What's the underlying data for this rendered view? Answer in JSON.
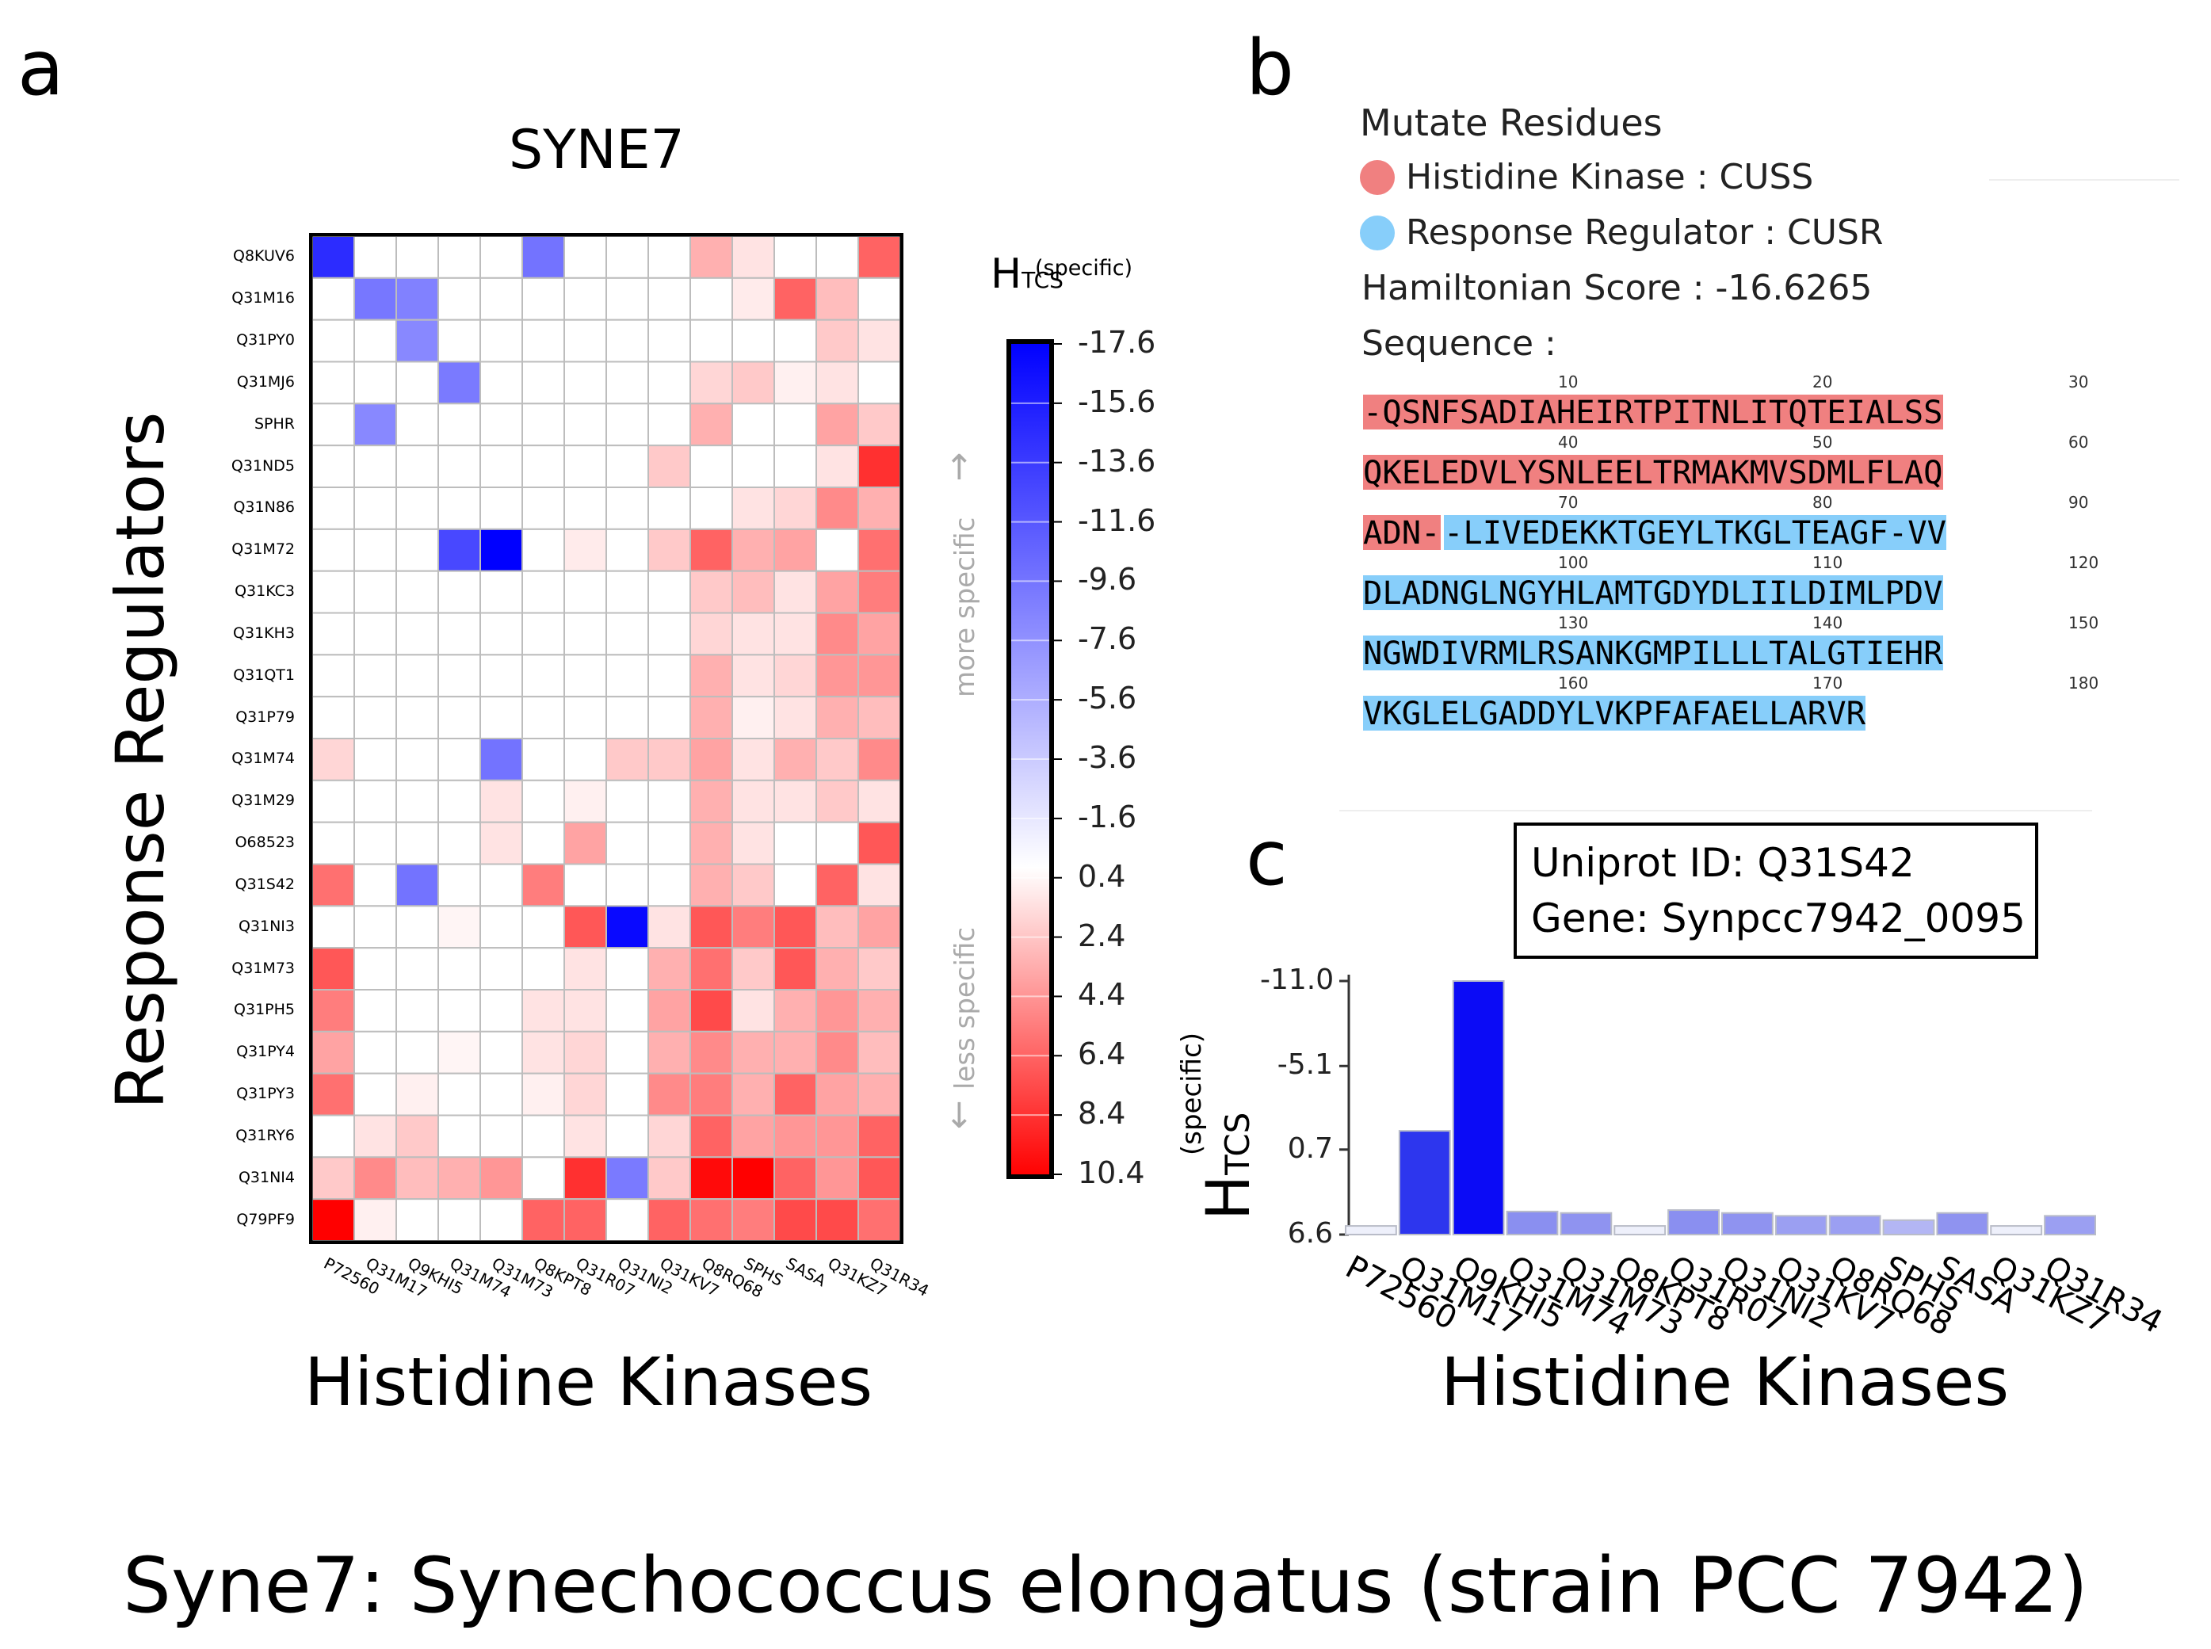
{
  "panels": {
    "a": "a",
    "b": "b",
    "c": "c"
  },
  "caption": "Syne7: Synechococcus elongatus (strain PCC 7942)",
  "chart_data": [
    {
      "type": "heatmap",
      "title": "SYNE7",
      "xlabel": "Histidine Kinases",
      "ylabel": "Response Regulators",
      "columns": [
        "P72560",
        "Q31M17",
        "Q9KHI5",
        "Q31M74",
        "Q31M73",
        "Q8KPT8",
        "Q31R07",
        "Q31NI2",
        "Q31KV7",
        "Q8RQ68",
        "SPHS",
        "SASA",
        "Q31KZ7",
        "Q31R34"
      ],
      "rows": [
        "Q8KUV6",
        "Q31M16",
        "Q31PY0",
        "Q31MJ6",
        "SPHR",
        "Q31ND5",
        "Q31N86",
        "Q31M72",
        "Q31KC3",
        "Q31KH3",
        "Q31QT1",
        "Q31P79",
        "Q31M74",
        "Q31M29",
        "O68523",
        "Q31S42",
        "Q31NI3",
        "Q31M73",
        "Q31PH5",
        "Q31PY4",
        "Q31PY3",
        "Q31RY6",
        "Q31NI4",
        "Q79PF9"
      ],
      "values": [
        [
          -14.5,
          0.4,
          0.4,
          0.4,
          0.4,
          -9.5,
          0.4,
          0.4,
          0.4,
          3.5,
          1.5,
          0.4,
          0.4,
          6.5
        ],
        [
          0.4,
          -9.2,
          -8.5,
          0.4,
          0.4,
          0.4,
          0.4,
          0.4,
          0.4,
          0.4,
          1.2,
          6.5,
          3.0,
          0.4
        ],
        [
          0.4,
          0.4,
          -8.0,
          0.4,
          0.4,
          0.4,
          0.4,
          0.4,
          0.4,
          0.4,
          0.4,
          0.4,
          2.5,
          1.5
        ],
        [
          0.4,
          0.4,
          0.4,
          -9.0,
          0.4,
          0.4,
          0.4,
          0.4,
          0.4,
          2.0,
          2.5,
          1.0,
          1.5,
          0.4
        ],
        [
          0.4,
          -8.0,
          0.4,
          0.4,
          0.4,
          0.4,
          0.4,
          0.4,
          0.4,
          3.5,
          0.4,
          0.4,
          4.0,
          2.5
        ],
        [
          0.4,
          0.4,
          0.4,
          0.4,
          0.4,
          0.4,
          0.4,
          0.4,
          2.5,
          0.4,
          0.4,
          0.4,
          1.5,
          8.5
        ],
        [
          0.4,
          0.4,
          0.4,
          0.4,
          0.4,
          0.4,
          0.4,
          0.4,
          0.4,
          0.4,
          1.5,
          2.0,
          5.0,
          3.5
        ],
        [
          0.4,
          0.4,
          0.4,
          -12.5,
          -17.6,
          0.4,
          1.2,
          0.4,
          2.5,
          6.5,
          3.5,
          4.0,
          0.4,
          6.0
        ],
        [
          0.4,
          0.4,
          0.4,
          0.4,
          0.4,
          0.4,
          0.4,
          0.4,
          0.4,
          2.5,
          3.0,
          1.5,
          4.0,
          5.5
        ],
        [
          0.4,
          0.4,
          0.4,
          0.4,
          0.4,
          0.4,
          0.4,
          0.4,
          0.4,
          2.0,
          1.5,
          1.5,
          5.0,
          4.0
        ],
        [
          0.4,
          0.4,
          0.4,
          0.4,
          0.4,
          0.4,
          0.4,
          0.4,
          0.4,
          3.5,
          1.5,
          2.0,
          4.5,
          4.5
        ],
        [
          0.4,
          0.4,
          0.4,
          0.4,
          0.4,
          0.4,
          0.4,
          0.4,
          0.4,
          3.5,
          1.0,
          1.5,
          3.5,
          3.0
        ],
        [
          2.0,
          0.4,
          0.4,
          0.4,
          -9.5,
          0.4,
          0.4,
          2.5,
          2.5,
          4.0,
          1.5,
          3.5,
          2.5,
          5.0
        ],
        [
          0.4,
          0.4,
          0.4,
          0.4,
          1.5,
          0.4,
          1.0,
          0.4,
          0.4,
          3.5,
          1.5,
          1.5,
          2.5,
          1.5
        ],
        [
          0.4,
          0.4,
          0.4,
          0.4,
          1.5,
          0.4,
          4.0,
          0.4,
          0.4,
          3.5,
          1.5,
          0.4,
          0.4,
          7.0
        ],
        [
          6.0,
          0.4,
          -9.5,
          0.4,
          0.4,
          5.5,
          0.4,
          0.4,
          0.4,
          3.5,
          2.5,
          0.4,
          6.5,
          1.5
        ],
        [
          0.4,
          0.4,
          0.4,
          0.8,
          0.4,
          0.4,
          7.0,
          -17.0,
          1.5,
          7.0,
          5.5,
          7.0,
          3.0,
          4.0
        ],
        [
          7.0,
          0.4,
          0.4,
          0.4,
          0.4,
          0.4,
          1.5,
          0.4,
          3.5,
          6.0,
          2.5,
          7.0,
          3.5,
          2.5
        ],
        [
          5.5,
          0.4,
          0.4,
          0.4,
          0.4,
          1.5,
          1.5,
          0.4,
          4.0,
          7.5,
          1.5,
          3.5,
          4.5,
          3.5
        ],
        [
          4.0,
          0.4,
          0.4,
          0.8,
          0.4,
          1.5,
          2.0,
          0.4,
          3.5,
          5.0,
          3.5,
          3.5,
          5.0,
          3.0
        ],
        [
          6.0,
          0.4,
          1.0,
          0.4,
          0.4,
          1.0,
          2.0,
          0.4,
          5.0,
          5.5,
          3.5,
          6.5,
          4.0,
          3.5
        ],
        [
          0.4,
          1.5,
          2.5,
          0.4,
          0.4,
          0.4,
          1.5,
          0.4,
          2.0,
          6.5,
          4.0,
          4.5,
          4.5,
          6.5
        ],
        [
          2.5,
          5.0,
          3.0,
          3.5,
          4.5,
          0.4,
          8.5,
          -9.0,
          2.5,
          10.0,
          10.4,
          6.5,
          4.5,
          7.0
        ],
        [
          10.4,
          1.0,
          0.4,
          0.4,
          0.4,
          6.5,
          6.5,
          0.4,
          6.5,
          6.0,
          5.5,
          7.5,
          7.5,
          6.0
        ]
      ],
      "colorbar": {
        "label": "H",
        "label_sub": "TCS",
        "label_sup": "(specific)",
        "range": [
          -17.6,
          10.4
        ],
        "ticks": [
          "-17.6",
          "-15.6",
          "-13.6",
          "-11.6",
          "-9.6",
          "-7.6",
          "-5.6",
          "-3.6",
          "-1.6",
          "0.4",
          "2.4",
          "4.4",
          "6.4",
          "8.4",
          "10.4"
        ],
        "note_top": "more specific",
        "note_bottom": "less specific",
        "arrow_up": "↑",
        "arrow_down": "↓"
      },
      "colors": {
        "negative": "#0000ff",
        "neutral": "#ffffff",
        "positive": "#ff0000",
        "grid": "#bdbdbd"
      }
    },
    {
      "type": "bar",
      "xlabel": "Histidine Kinases",
      "ylabel": "H",
      "ylabel_sub": "TCS",
      "ylabel_sup": "(specific)",
      "categories": [
        "P72560",
        "Q31M17",
        "Q9KHI5",
        "Q31M74",
        "Q31M73",
        "Q8KPT8",
        "Q31R07",
        "Q31NI2",
        "Q31KV7",
        "Q8RQ68",
        "SPHS",
        "SASA",
        "Q31KZ7",
        "Q31R34"
      ],
      "values": [
        6.0,
        -0.6,
        -11.0,
        5.0,
        5.1,
        6.0,
        4.9,
        5.1,
        5.3,
        5.3,
        5.6,
        5.1,
        6.0,
        5.3
      ],
      "ylim": [
        6.6,
        -11.0
      ],
      "yticks": [
        "-11.0",
        "-5.1",
        "0.7",
        "6.6"
      ],
      "colors": [
        "#eef0fb",
        "#2d36ee",
        "#0b0bf6",
        "#8a8ff0",
        "#8f93f0",
        "#eef0fb",
        "#8a8ff0",
        "#8f93f0",
        "#9b9ff2",
        "#9b9ff2",
        "#b3b6f4",
        "#8f93f0",
        "#eef0fb",
        "#9b9ff2"
      ],
      "infobox": {
        "uniprot": "Uniprot ID: Q31S42",
        "gene": "Gene: Synpcc7942_0095"
      }
    }
  ],
  "mutate": {
    "heading": "Mutate Residues",
    "hk_label": "Histidine Kinase : CUSS",
    "rr_label": "Response Regulator : CUSR",
    "score": "Hamiltonian Score : -16.6265",
    "sequence_label": "Sequence :",
    "hk_color": "#f08080",
    "rr_color": "#87cefa",
    "lines": [
      {
        "numbers": [
          "10",
          "20",
          "30"
        ],
        "hk": "-QSNFSADIAHEIRTPITNLITQTEIALSS",
        "rr": ""
      },
      {
        "numbers": [
          "40",
          "50",
          "60"
        ],
        "hk": "QKELEDVLYSNLEELTRMAKMVSDMLFLAQ",
        "rr": ""
      },
      {
        "numbers": [
          "70",
          "80",
          "90"
        ],
        "hk": "ADN-",
        "rr": "-LIVEDEKKTGEYLTKGLTEAGF-VV"
      },
      {
        "numbers": [
          "100",
          "110",
          "120"
        ],
        "hk": "",
        "rr": "DLADNGLNGYHLAMTGDYDLIILDIMLPDV"
      },
      {
        "numbers": [
          "130",
          "140",
          "150"
        ],
        "hk": "",
        "rr": "NGWDIVRMLRSANKGMPILLLTALGTIEHR"
      },
      {
        "numbers": [
          "160",
          "170",
          "180"
        ],
        "hk": "",
        "rr": "VKGLELGADDYLVKPFAFAELLARVR"
      }
    ]
  }
}
